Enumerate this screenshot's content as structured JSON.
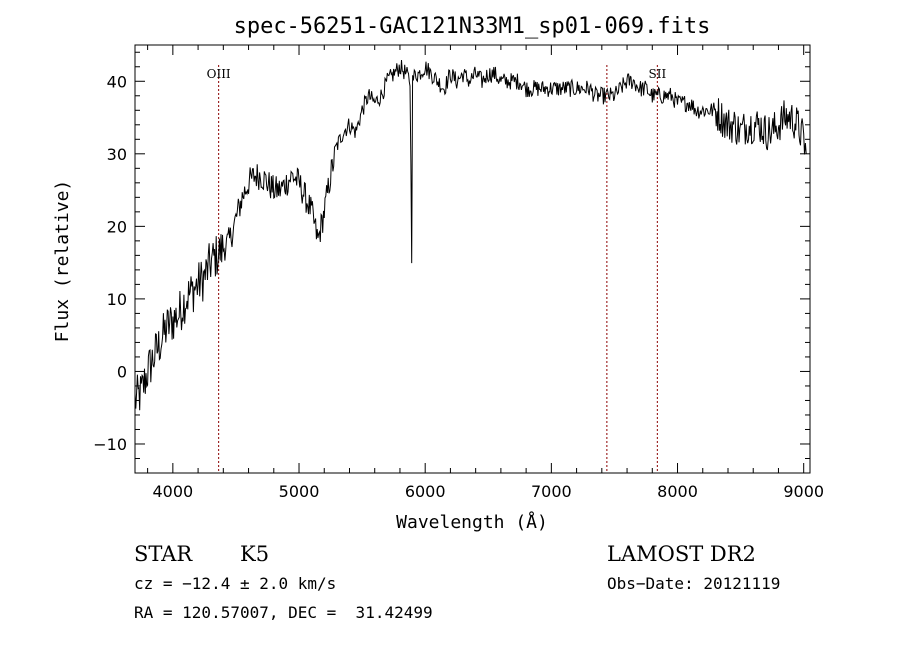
{
  "chart_data": {
    "type": "line",
    "title": "spec-56251-GAC121N33M1_sp01-069.fits",
    "xlabel": "Wavelength (Å)",
    "ylabel": "Flux (relative)",
    "xlim": [
      3700,
      9050
    ],
    "ylim": [
      -14,
      45
    ],
    "xticks": [
      4000,
      5000,
      6000,
      7000,
      8000,
      9000
    ],
    "yticks": [
      -10,
      0,
      10,
      20,
      30,
      40
    ],
    "grid": false,
    "line_color": "#000000",
    "marker_color": "#8b0000",
    "series": [
      {
        "x": [
          3700,
          3750,
          3800,
          3850,
          3900,
          3950,
          4000,
          4050,
          4100,
          4150,
          4200,
          4250,
          4300,
          4350,
          4400,
          4450,
          4500,
          4550,
          4600,
          4650,
          4700,
          4750,
          4800,
          4850,
          4900,
          4950,
          5000,
          5050,
          5100,
          5150,
          5200,
          5250,
          5300,
          5350,
          5400,
          5450,
          5500,
          5550,
          5600,
          5650,
          5700,
          5750,
          5800,
          5850,
          5880,
          5893,
          5900,
          5920,
          5950,
          6000,
          6050,
          6100,
          6150,
          6200,
          6250,
          6300,
          6350,
          6400,
          6450,
          6500,
          6550,
          6600,
          6650,
          6700,
          6750,
          6800,
          6850,
          6900,
          6950,
          7000,
          7050,
          7100,
          7150,
          7200,
          7250,
          7300,
          7350,
          7400,
          7450,
          7500,
          7550,
          7600,
          7650,
          7700,
          7750,
          7800,
          7850,
          7900,
          7950,
          8000,
          8050,
          8100,
          8150,
          8200,
          8250,
          8300,
          8350,
          8400,
          8450,
          8500,
          8550,
          8600,
          8650,
          8700,
          8750,
          8800,
          8850,
          8900,
          8950,
          9000,
          9020
        ],
        "y": [
          -4,
          -3,
          0,
          2,
          4,
          6,
          7,
          8,
          10,
          11,
          12,
          13,
          15,
          16,
          17,
          18,
          21,
          24,
          26,
          27,
          27,
          26,
          25,
          25,
          26,
          27,
          26,
          24,
          22,
          18,
          22,
          27,
          31,
          33,
          34,
          33,
          36,
          38,
          37,
          38,
          40,
          41,
          42,
          41,
          40,
          16,
          40,
          41,
          41,
          42,
          41,
          40,
          39,
          41,
          40,
          41,
          40,
          41,
          40,
          41,
          41,
          40,
          40,
          40,
          40,
          39,
          39,
          39,
          39,
          39,
          39,
          39,
          39,
          39,
          39,
          39,
          38,
          38,
          38,
          38,
          39,
          40,
          40,
          39,
          39,
          38,
          38,
          38,
          38,
          37,
          37,
          37,
          36,
          36,
          36,
          36,
          35,
          34,
          34,
          33,
          34,
          34,
          34,
          33,
          33,
          34,
          35,
          35,
          34,
          32,
          30
        ]
      }
    ],
    "line_markers": [
      {
        "label": "OIII",
        "x": 4363
      },
      {
        "label": "",
        "x": 7440
      },
      {
        "label": "SII",
        "x": 7840
      }
    ],
    "annotations": {
      "class": "STAR",
      "subclass": "K5",
      "survey": "LAMOST DR2",
      "velocity": "cz = −12.4 ± 2.0 km/s",
      "obs_date": "Obs−Date: 20121119",
      "coords": "RA = 120.57007, DEC =  31.42499"
    }
  }
}
